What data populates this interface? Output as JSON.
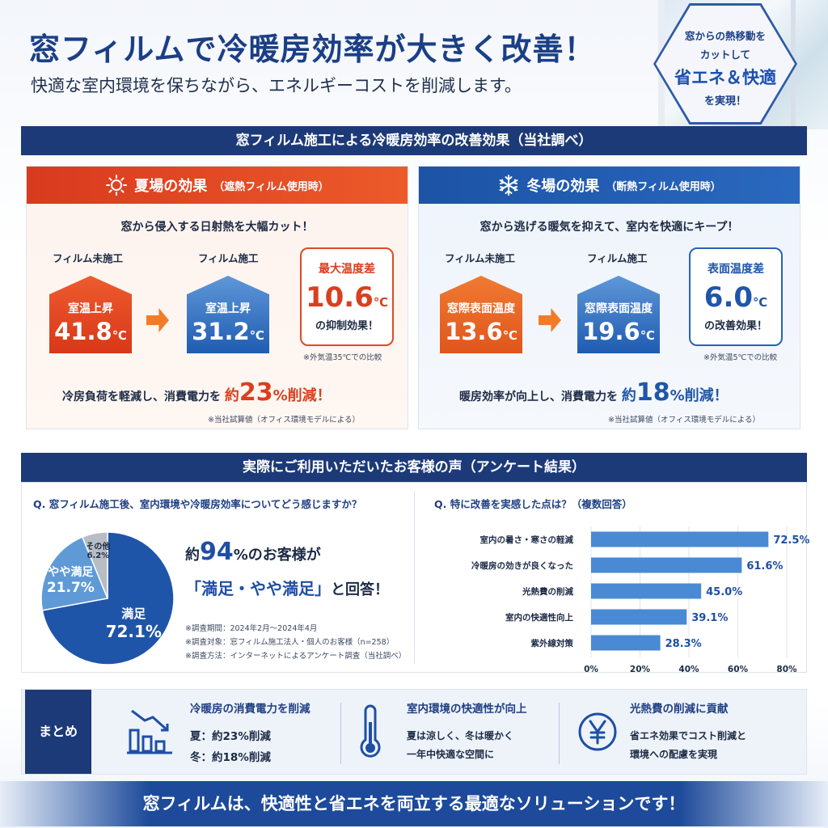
{
  "header": {
    "title": "窓フィルムで冷暖房効率が大きく改善！",
    "subtitle": "快適な室内環境を保ちながら、エネルギーコストを削減します。",
    "badge": {
      "line1": "窓からの熱移動を",
      "line2": "カットして",
      "line3": "省エネ＆快適",
      "line4": "を実現！"
    }
  },
  "effects_band": "窓フィルム施工による冷暖房効率の改善効果（当社調べ）",
  "summer": {
    "title": "夏場の効果",
    "note": "（遮熱フィルム使用時）",
    "intro": "窓から侵入する日射熱を大幅カット！",
    "before_label": "フィルム未施工",
    "after_label": "フィルム施工",
    "before_house_label": "室温上昇",
    "before_value": "41.8",
    "after_house_label": "室温上昇",
    "after_value": "31.2",
    "unit": "℃",
    "diff_title": "最大温度差",
    "diff_value": "10.6",
    "diff_effect": "の抑制効果！",
    "condition": "※外気温35℃での比較",
    "saving_prefix": "冷房負荷を軽減し、消費電力を",
    "saving_about": "約",
    "saving_value": "23",
    "saving_suffix": "%削減！",
    "saving_note": "※当社試算値（オフィス環境モデルによる）"
  },
  "winter": {
    "title": "冬場の効果",
    "note": "（断熱フィルム使用時）",
    "intro": "窓から逃げる暖気を抑えて、室内を快適にキープ！",
    "before_label": "フィルム未施工",
    "after_label": "フィルム施工",
    "before_house_label": "窓際表面温度",
    "before_value": "13.6",
    "after_house_label": "窓際表面温度",
    "after_value": "19.6",
    "unit": "℃",
    "diff_title": "表面温度差",
    "diff_value": "6.0",
    "diff_effect": "の改善効果！",
    "condition": "※外気温5℃での比較",
    "saving_prefix": "暖房効率が向上し、消費電力を",
    "saving_about": "約",
    "saving_value": "18",
    "saving_suffix": "%削減！",
    "saving_note": "※当社試算値（オフィス環境モデルによる）"
  },
  "voice_band": "実際にご利用いただいたお客様の声（アンケート結果）",
  "survey": {
    "q1": "Q. 窓フィルム施工後、室内環境や冷暖房効率についてどう感じますか？",
    "q2": "Q. 特に改善を実感した点は？（複数回答）",
    "response_prefix": "約",
    "response_value": "94",
    "response_suffix": "%のお客様が",
    "response_quote": "「満足・やや満足」",
    "response_end": "と回答！",
    "notes": [
      "※調査期間：2024年2月～2024年4月",
      "※調査対象：窓フィルム施工法人・個人のお客様（n=258）",
      "※調査方法：インターネットによるアンケート調査（当社調べ）"
    ]
  },
  "chart_data": [
    {
      "type": "pie",
      "labels": [
        "満足",
        "やや満足",
        "その他"
      ],
      "values": [
        72.1,
        21.7,
        6.2
      ],
      "display": [
        "72.1%",
        "21.7%",
        "6.2%"
      ],
      "colors": [
        "#1f55a8",
        "#5f9ad6",
        "#b8bcc4"
      ]
    },
    {
      "type": "bar",
      "orientation": "horizontal",
      "categories": [
        "室内の暑さ・寒さの軽減",
        "冷暖房の効きが良くなった",
        "光熱費の削減",
        "室内の快適性向上",
        "紫外線対策"
      ],
      "values": [
        72.5,
        61.6,
        45.0,
        39.1,
        28.3
      ],
      "value_labels": [
        "72.5%",
        "61.6%",
        "45.0%",
        "39.1%",
        "28.3%"
      ],
      "xlim": [
        0,
        80
      ],
      "ticks": [
        "0%",
        "20%",
        "40%",
        "60%",
        "80%"
      ],
      "grid": true,
      "color": "#4a8ad4"
    }
  ],
  "summary": {
    "label": "まとめ",
    "items": [
      {
        "title": "冷暖房の消費電力を削減",
        "line1": "夏：約23%削減",
        "line2": "冬：約18%削減",
        "icon": "bar-chart-down-icon"
      },
      {
        "title": "室内環境の快適性が向上",
        "line1": "夏は涼しく、冬は暖かく",
        "line2": "一年中快適な空間に",
        "icon": "thermometer-icon"
      },
      {
        "title": "光熱費の削減に貢献",
        "line1": "省エネ効果でコスト削減と",
        "line2": "環境への配慮を実現",
        "icon": "yen-icon"
      }
    ]
  },
  "footer": "窓フィルムは、快適性と省エネを両立する最適なソリューションです！"
}
